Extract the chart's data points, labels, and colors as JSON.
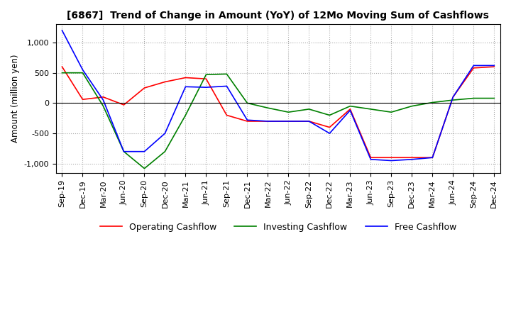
{
  "title": "[6867]  Trend of Change in Amount (YoY) of 12Mo Moving Sum of Cashflows",
  "ylabel": "Amount (million yen)",
  "ylim": [
    -1150,
    1300
  ],
  "yticks": [
    -1000,
    -500,
    0,
    500,
    1000
  ],
  "x_labels": [
    "Sep-19",
    "Dec-19",
    "Mar-20",
    "Jun-20",
    "Sep-20",
    "Dec-20",
    "Mar-21",
    "Jun-21",
    "Sep-21",
    "Dec-21",
    "Mar-22",
    "Jun-22",
    "Sep-22",
    "Dec-22",
    "Mar-23",
    "Jun-23",
    "Sep-23",
    "Dec-23",
    "Mar-24",
    "Jun-24",
    "Sep-24",
    "Dec-24"
  ],
  "operating": [
    600,
    60,
    100,
    -30,
    250,
    350,
    420,
    400,
    -200,
    -300,
    -300,
    -300,
    -300,
    -400,
    -100,
    -900,
    -900,
    -900,
    -900,
    100,
    580,
    600
  ],
  "investing": [
    500,
    500,
    -50,
    -800,
    -1080,
    -800,
    -200,
    470,
    480,
    0,
    -80,
    -150,
    -100,
    -200,
    -50,
    -100,
    -150,
    -50,
    10,
    50,
    80,
    80
  ],
  "free_cashflow": [
    1200,
    550,
    50,
    -800,
    -800,
    -500,
    270,
    260,
    280,
    -280,
    -300,
    -300,
    -300,
    -500,
    -120,
    -930,
    -950,
    -930,
    -900,
    100,
    620,
    620
  ],
  "operating_color": "#ff0000",
  "investing_color": "#008000",
  "free_color": "#0000ff",
  "background_color": "#ffffff",
  "grid_color": "#aaaaaa"
}
